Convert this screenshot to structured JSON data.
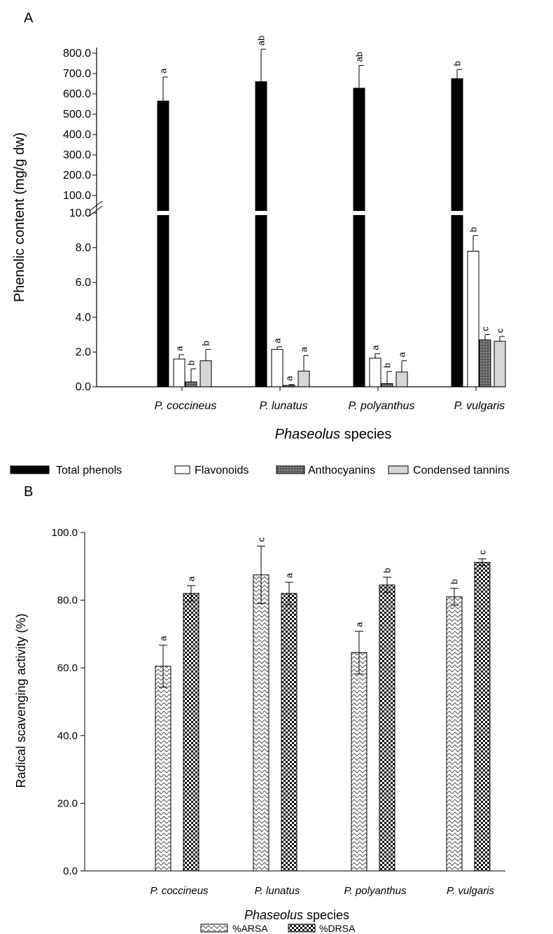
{
  "chart_data": [
    {
      "panel": "A",
      "type": "bar",
      "ylabel": "Phenolic content (mg/g dw)",
      "xlabel_italic": "Phaseolus",
      "xlabel_rest": " species",
      "categories": [
        "P. coccineus",
        "P. lunatus",
        "P. polyanthus",
        "P. vulgaris"
      ],
      "y_lower_ticks": [
        "0.0",
        "2.0",
        "4.0",
        "6.0",
        "8.0",
        "10.0"
      ],
      "y_upper_ticks": [
        "100.0",
        "200.0",
        "300.0",
        "400.0",
        "500.0",
        "600.0",
        "700.0",
        "800.0"
      ],
      "y_axis_break": [
        10,
        100
      ],
      "series": [
        {
          "name": "Total phenols",
          "color": "#000000",
          "values": [
            565,
            660,
            628,
            675
          ],
          "errors": [
            118,
            160,
            112,
            45
          ],
          "letters": [
            "a",
            "ab",
            "ab",
            "b"
          ]
        },
        {
          "name": "Flavonoids",
          "color": "#ffffff",
          "values": [
            1.6,
            2.15,
            1.65,
            7.8
          ],
          "errors": [
            0.25,
            0.15,
            0.25,
            0.9
          ],
          "letters": [
            "a",
            "a",
            "a",
            "b"
          ]
        },
        {
          "name": "Anthocyanins",
          "color": "#7a7a7a",
          "values": [
            0.28,
            0.08,
            0.18,
            2.7
          ],
          "errors": [
            0.75,
            0.05,
            0.7,
            0.3
          ],
          "letters": [
            "b",
            "a",
            "b",
            "c"
          ]
        },
        {
          "name": "Condensed tannins",
          "color": "#d6d6d6",
          "values": [
            1.5,
            0.9,
            0.85,
            2.62
          ],
          "errors": [
            0.65,
            0.9,
            0.65,
            0.28
          ],
          "letters": [
            "b",
            "a",
            "a",
            "c"
          ]
        }
      ]
    },
    {
      "panel": "B",
      "type": "bar",
      "ylabel": "Radical scavenging activity (%)",
      "xlabel_italic": "Phaseolus",
      "xlabel_rest": " species",
      "categories": [
        "P. coccineus",
        "P. lunatus",
        "P. polyanthus",
        "P. vulgaris"
      ],
      "ylim": [
        0,
        100
      ],
      "y_ticks": [
        "0.0",
        "20.0",
        "40.0",
        "60.0",
        "80.0",
        "100.0"
      ],
      "series": [
        {
          "name": "%ARSA",
          "pattern": "wave",
          "values": [
            60.5,
            87.5,
            64.5,
            81
          ],
          "errors": [
            6.2,
            8.5,
            6.3,
            2.5
          ],
          "letters": [
            "a",
            "c",
            "a",
            "b"
          ]
        },
        {
          "name": "%DRSA",
          "pattern": "checker",
          "values": [
            82,
            82,
            84.5,
            91.2
          ],
          "errors": [
            2.3,
            3.3,
            2.3,
            1.0
          ],
          "letters": [
            "a",
            "a",
            "b",
            "c"
          ]
        }
      ]
    }
  ]
}
